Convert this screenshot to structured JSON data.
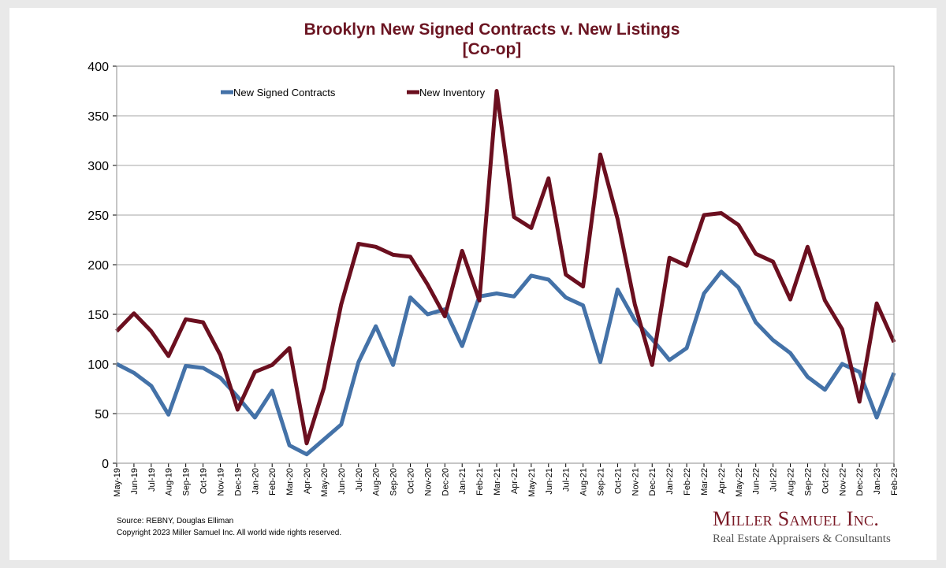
{
  "chart_data": {
    "type": "line",
    "title": "Brooklyn New Signed Contracts v. New Listings",
    "subtitle": "[Co-op]",
    "ylim": [
      0,
      400
    ],
    "yticks": [
      0,
      50,
      100,
      150,
      200,
      250,
      300,
      350,
      400
    ],
    "grid": true,
    "legend_position": "top-left",
    "categories": [
      "May-19",
      "Jun-19",
      "Jul-19",
      "Aug-19",
      "Sep-19",
      "Oct-19",
      "Nov-19",
      "Dec-19",
      "Jan-20",
      "Feb-20",
      "Mar-20",
      "Apr-20",
      "May-20",
      "Jun-20",
      "Jul-20",
      "Aug-20",
      "Sep-20",
      "Oct-20",
      "Nov-20",
      "Dec-20",
      "Jan-21",
      "Feb-21",
      "Mar-21",
      "Apr-21",
      "May-21",
      "Jun-21",
      "Jul-21",
      "Aug-21",
      "Sep-21",
      "Oct-21",
      "Nov-21",
      "Dec-21",
      "Jan-22",
      "Feb-22",
      "Mar-22",
      "Apr-22",
      "May-22",
      "Jun-22",
      "Jul-22",
      "Aug-22",
      "Sep-22",
      "Oct-22",
      "Nov-22",
      "Dec-22",
      "Jan-23",
      "Feb-23"
    ],
    "series": [
      {
        "name": "New Signed Contracts",
        "color": "#4472a8",
        "values": [
          100,
          91,
          78,
          49,
          98,
          96,
          86,
          67,
          46,
          73,
          18,
          9,
          24,
          39,
          102,
          138,
          99,
          167,
          150,
          155,
          118,
          168,
          171,
          168,
          189,
          185,
          167,
          159,
          102,
          175,
          144,
          125,
          104,
          116,
          171,
          193,
          177,
          142,
          124,
          111,
          87,
          74,
          100,
          92,
          46,
          91
        ]
      },
      {
        "name": "New Inventory",
        "color": "#6b0f1f",
        "values": [
          133,
          151,
          133,
          108,
          145,
          142,
          109,
          54,
          92,
          99,
          116,
          20,
          76,
          160,
          221,
          218,
          210,
          208,
          180,
          148,
          214,
          164,
          375,
          248,
          237,
          287,
          190,
          178,
          311,
          246,
          160,
          99,
          207,
          199,
          250,
          252,
          240,
          211,
          203,
          165,
          218,
          164,
          135,
          62,
          161,
          122
        ]
      }
    ]
  },
  "footer": {
    "source": "Source: REBNY, Douglas Elliman",
    "copyright": "Copyright 2023 Miller Samuel Inc.  All world wide rights reserved."
  },
  "logo": {
    "name": "Miller Samuel Inc.",
    "tagline": "Real Estate Appraisers & Consultants"
  }
}
